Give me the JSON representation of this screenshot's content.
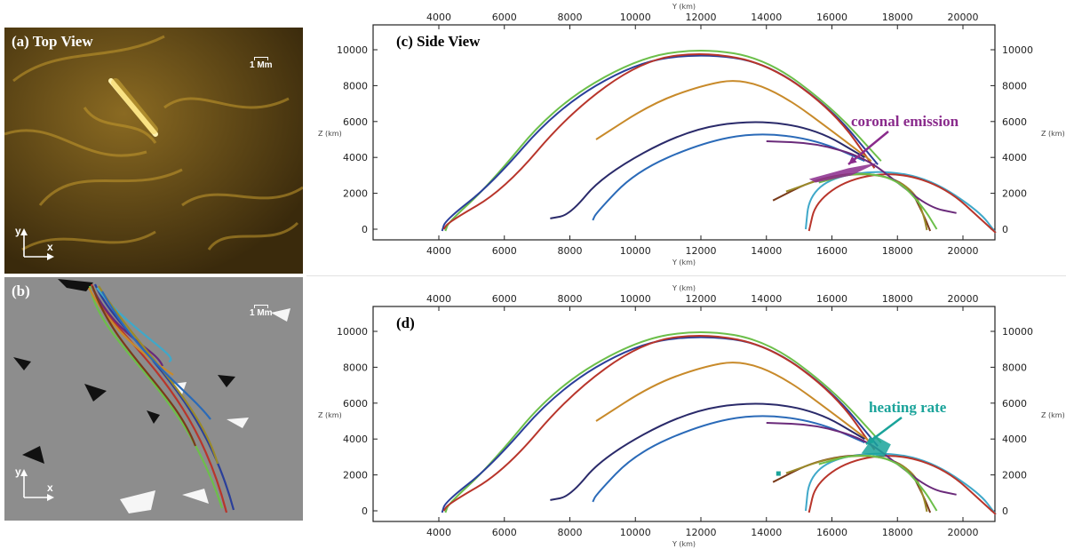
{
  "panels": {
    "a": {
      "label": "(a) Top View",
      "scale": "1 Mm"
    },
    "b": {
      "label": "(b)",
      "scale": "1 Mm"
    },
    "c": {
      "label": "(c) Side View",
      "annotation": "coronal emission",
      "annotation_color": "#8a2b8c"
    },
    "d": {
      "label": "(d)",
      "annotation": "heating rate",
      "annotation_color": "#1aa39a"
    }
  },
  "axes": {
    "x_label": "Y (km)",
    "y_label": "Z (km)",
    "x_ticks": [
      "4000",
      "6000",
      "8000",
      "10000",
      "12000",
      "14000",
      "16000",
      "18000",
      "20000"
    ],
    "y_ticks": [
      "0",
      "2000",
      "4000",
      "6000",
      "8000",
      "10000"
    ],
    "xlim": [
      2500,
      21500
    ],
    "ylim": [
      -600,
      11000
    ]
  },
  "compass": {
    "x": "x",
    "y": "y"
  },
  "colors": {
    "top_view": "#c49a2e",
    "magnetogram_bg": "#8d8d8d",
    "field_lines": [
      "#6cbf4a",
      "#2a3f9a",
      "#b8352b",
      "#9a8a2a",
      "#3fa8c9",
      "#6a2a7a",
      "#2a2a6a",
      "#c88a2a",
      "#2a6ab8",
      "#7a3a1a"
    ]
  }
}
